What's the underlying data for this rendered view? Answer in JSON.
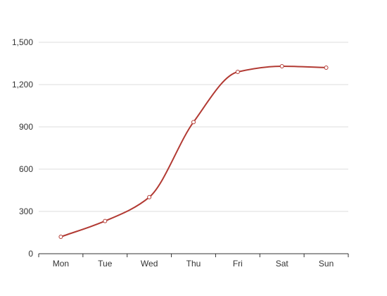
{
  "chart_data": {
    "type": "line",
    "smooth": true,
    "categories": [
      "Mon",
      "Tue",
      "Wed",
      "Thu",
      "Fri",
      "Sat",
      "Sun"
    ],
    "series": [
      {
        "values": [
          120,
          232,
          401,
          934,
          1290,
          1330,
          1320
        ]
      }
    ],
    "ylim": [
      0,
      1500
    ],
    "y_ticks": [
      0,
      300,
      600,
      900,
      1200,
      1500
    ],
    "y_tick_labels": [
      "0",
      "300",
      "600",
      "900",
      "1,200",
      "1,500"
    ],
    "grid": true,
    "colors": {
      "line": "#b23a33",
      "grid": "#dcdcdc",
      "axis": "#333333"
    }
  }
}
